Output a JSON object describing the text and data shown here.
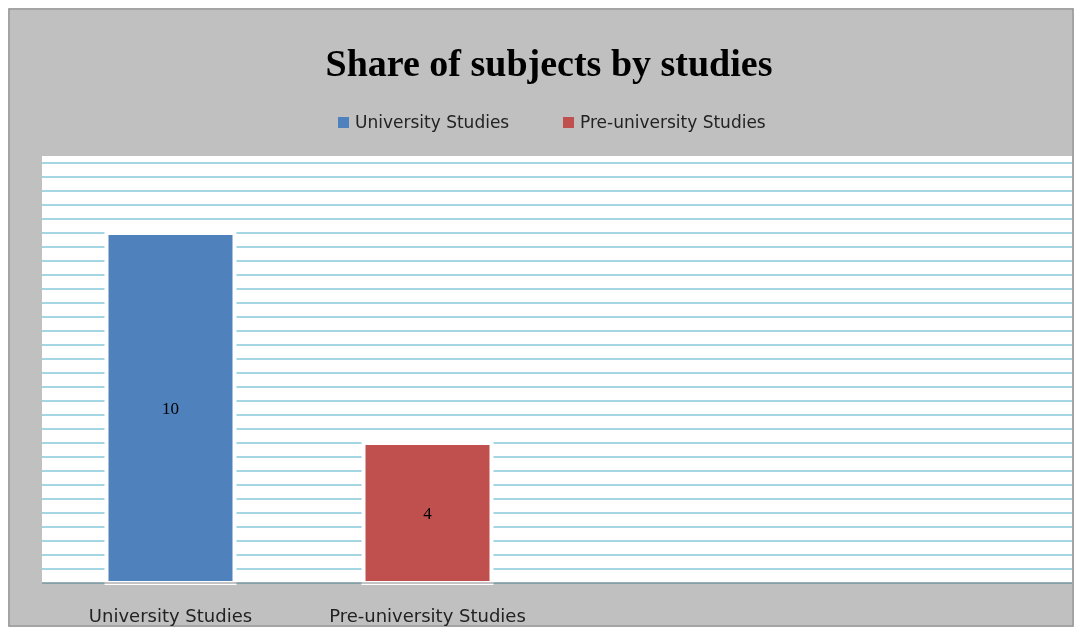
{
  "chart_data": {
    "type": "bar",
    "title": "Share of subjects by studies",
    "categories": [
      "University Studies",
      "Pre-university Studies"
    ],
    "series": [
      {
        "name": "University Studies",
        "color": "#4f81bd",
        "values": [
          10,
          null
        ]
      },
      {
        "name": "Pre-university Studies",
        "color": "#c0504d",
        "values": [
          null,
          4
        ]
      }
    ],
    "data_labels": true,
    "legend": "top",
    "grid": "y",
    "tick_labels": "x",
    "ylim": [
      0,
      12.2
    ],
    "yticks": [
      {
        "value": 0,
        "label": null
      },
      {
        "value": 0.4,
        "label": null
      },
      {
        "value": 0.8,
        "label": null
      },
      {
        "value": 1.2,
        "label": null
      },
      {
        "value": 1.6,
        "label": null
      },
      {
        "value": 2,
        "label": null
      },
      {
        "value": 2.4,
        "label": null
      },
      {
        "value": 2.8,
        "label": null
      },
      {
        "value": 3.2,
        "label": null
      },
      {
        "value": 3.6,
        "label": null
      },
      {
        "value": 4,
        "label": null
      },
      {
        "value": 4.4,
        "label": null
      },
      {
        "value": 4.8,
        "label": null
      },
      {
        "value": 5.2,
        "label": null
      },
      {
        "value": 5.6,
        "label": null
      },
      {
        "value": 6,
        "label": null
      },
      {
        "value": 6.4,
        "label": null
      },
      {
        "value": 6.8,
        "label": null
      },
      {
        "value": 7.2,
        "label": null
      },
      {
        "value": 7.6,
        "label": null
      },
      {
        "value": 8,
        "label": null
      },
      {
        "value": 8.4,
        "label": null
      },
      {
        "value": 8.8,
        "label": null
      },
      {
        "value": 9.2,
        "label": null
      },
      {
        "value": 9.6,
        "label": null
      },
      {
        "value": 10,
        "label": null
      },
      {
        "value": 10.4,
        "label": null
      },
      {
        "value": 10.8,
        "label": null
      },
      {
        "value": 11.2,
        "label": null
      },
      {
        "value": 11.6,
        "label": null
      },
      {
        "value": 12,
        "label": null
      }
    ]
  }
}
